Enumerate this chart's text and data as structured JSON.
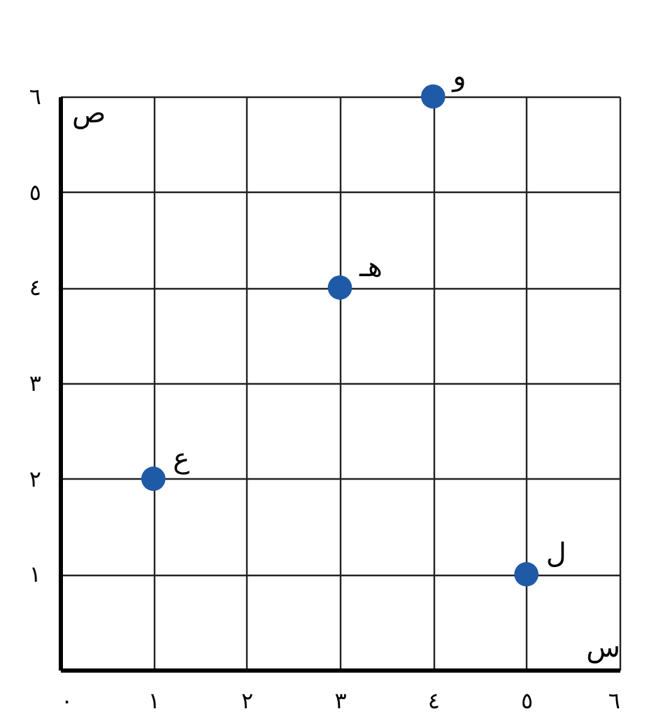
{
  "chart_data": {
    "type": "scatter",
    "xlabel": "س",
    "ylabel": "ص",
    "x": [
      1,
      3,
      4,
      5
    ],
    "series": [
      {
        "color": "#1f5aa6",
        "values": [
          2,
          4,
          6,
          1
        ]
      }
    ],
    "xlim": [
      0,
      6
    ],
    "ylim": [
      0,
      6
    ],
    "xticks": [
      {
        "value": 0,
        "label": "٠"
      },
      {
        "value": 1,
        "label": "١"
      },
      {
        "value": 2,
        "label": "٢"
      },
      {
        "value": 3,
        "label": "٣"
      },
      {
        "value": 4,
        "label": "٤"
      },
      {
        "value": 5,
        "label": "٥"
      },
      {
        "value": 6,
        "label": "٦"
      }
    ],
    "yticks": [
      {
        "value": 1,
        "label": "١"
      },
      {
        "value": 2,
        "label": "٢"
      },
      {
        "value": 3,
        "label": "٣"
      },
      {
        "value": 4,
        "label": "٤"
      },
      {
        "value": 5,
        "label": "٥"
      },
      {
        "value": 6,
        "label": "٦"
      }
    ],
    "annotations": [
      {
        "text": "ع",
        "x": 1,
        "y": 2
      },
      {
        "text": "هـ",
        "x": 3,
        "y": 4
      },
      {
        "text": "و",
        "x": 4,
        "y": 6
      },
      {
        "text": "ل",
        "x": 5,
        "y": 1
      }
    ],
    "grid": true,
    "marker": "circle",
    "legend": false
  }
}
